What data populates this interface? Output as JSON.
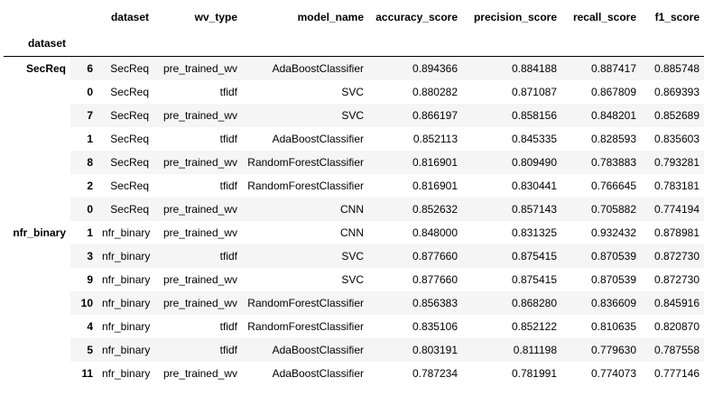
{
  "table": {
    "index_name": "dataset",
    "columns": [
      "dataset",
      "wv_type",
      "model_name",
      "accuracy_score",
      "precision_score",
      "recall_score",
      "f1_score"
    ],
    "groups": [
      {
        "name": "SecReq",
        "rows": [
          {
            "idx": "6",
            "cells": [
              "SecReq",
              "pre_trained_wv",
              "AdaBoostClassifier",
              "0.894366",
              "0.884188",
              "0.887417",
              "0.885748"
            ]
          },
          {
            "idx": "0",
            "cells": [
              "SecReq",
              "tfidf",
              "SVC",
              "0.880282",
              "0.871087",
              "0.867809",
              "0.869393"
            ]
          },
          {
            "idx": "7",
            "cells": [
              "SecReq",
              "pre_trained_wv",
              "SVC",
              "0.866197",
              "0.858156",
              "0.848201",
              "0.852689"
            ]
          },
          {
            "idx": "1",
            "cells": [
              "SecReq",
              "tfidf",
              "AdaBoostClassifier",
              "0.852113",
              "0.845335",
              "0.828593",
              "0.835603"
            ]
          },
          {
            "idx": "8",
            "cells": [
              "SecReq",
              "pre_trained_wv",
              "RandomForestClassifier",
              "0.816901",
              "0.809490",
              "0.783883",
              "0.793281"
            ]
          },
          {
            "idx": "2",
            "cells": [
              "SecReq",
              "tfidf",
              "RandomForestClassifier",
              "0.816901",
              "0.830441",
              "0.766645",
              "0.783181"
            ]
          },
          {
            "idx": "0",
            "cells": [
              "SecReq",
              "pre_trained_wv",
              "CNN",
              "0.852632",
              "0.857143",
              "0.705882",
              "0.774194"
            ]
          }
        ]
      },
      {
        "name": "nfr_binary",
        "rows": [
          {
            "idx": "1",
            "cells": [
              "nfr_binary",
              "pre_trained_wv",
              "CNN",
              "0.848000",
              "0.831325",
              "0.932432",
              "0.878981"
            ]
          },
          {
            "idx": "3",
            "cells": [
              "nfr_binary",
              "tfidf",
              "SVC",
              "0.877660",
              "0.875415",
              "0.870539",
              "0.872730"
            ]
          },
          {
            "idx": "9",
            "cells": [
              "nfr_binary",
              "pre_trained_wv",
              "SVC",
              "0.877660",
              "0.875415",
              "0.870539",
              "0.872730"
            ]
          },
          {
            "idx": "10",
            "cells": [
              "nfr_binary",
              "pre_trained_wv",
              "RandomForestClassifier",
              "0.856383",
              "0.868280",
              "0.836609",
              "0.845916"
            ]
          },
          {
            "idx": "4",
            "cells": [
              "nfr_binary",
              "tfidf",
              "RandomForestClassifier",
              "0.835106",
              "0.852122",
              "0.810635",
              "0.820870"
            ]
          },
          {
            "idx": "5",
            "cells": [
              "nfr_binary",
              "tfidf",
              "AdaBoostClassifier",
              "0.803191",
              "0.811198",
              "0.779630",
              "0.787558"
            ]
          },
          {
            "idx": "11",
            "cells": [
              "nfr_binary",
              "pre_trained_wv",
              "AdaBoostClassifier",
              "0.787234",
              "0.781991",
              "0.774073",
              "0.777146"
            ]
          }
        ]
      }
    ]
  }
}
